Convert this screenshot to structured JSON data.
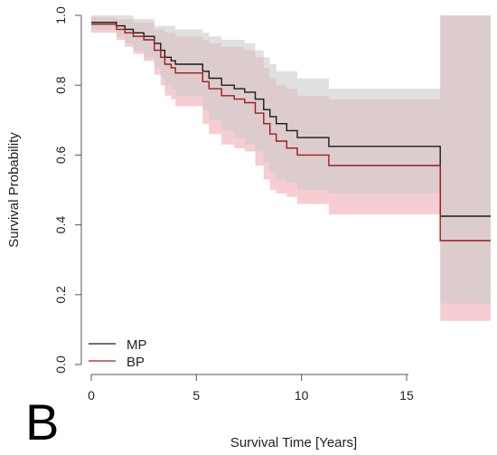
{
  "panel_label": "B",
  "chart_data": {
    "type": "line",
    "subtype": "kaplan-meier step with confidence bands",
    "xlabel": "Survival Time [Years]",
    "ylabel": "Survival Probability",
    "xlim": [
      0,
      19
    ],
    "ylim": [
      0,
      1
    ],
    "x_ticks": [
      0,
      5,
      10,
      15
    ],
    "y_ticks": [
      0.0,
      0.2,
      0.4,
      0.6,
      0.8,
      1.0
    ],
    "y_tick_labels": [
      "0.0",
      "0.2",
      "0.4",
      "0.6",
      "0.8",
      "1.0"
    ],
    "grid": false,
    "legend_position": "bottom-left",
    "colors": {
      "MP_line": "#1a1a1a",
      "BP_line": "#a31a1a",
      "MP_band": "#cccccc",
      "BP_band": "#f2b8bc"
    },
    "series": [
      {
        "name": "MP",
        "steps": [
          [
            0,
            0.98
          ],
          [
            1.2,
            0.97
          ],
          [
            1.6,
            0.96
          ],
          [
            2.0,
            0.95
          ],
          [
            2.5,
            0.94
          ],
          [
            3.0,
            0.92
          ],
          [
            3.3,
            0.9
          ],
          [
            3.5,
            0.88
          ],
          [
            3.8,
            0.87
          ],
          [
            4.0,
            0.86
          ],
          [
            5.3,
            0.84
          ],
          [
            5.6,
            0.82
          ],
          [
            6.2,
            0.8
          ],
          [
            6.8,
            0.79
          ],
          [
            7.3,
            0.78
          ],
          [
            7.8,
            0.76
          ],
          [
            8.2,
            0.73
          ],
          [
            8.5,
            0.71
          ],
          [
            8.8,
            0.69
          ],
          [
            9.3,
            0.67
          ],
          [
            9.8,
            0.65
          ],
          [
            11.3,
            0.625
          ],
          [
            16.6,
            0.425
          ]
        ],
        "lower": [
          [
            0,
            0.96
          ],
          [
            1.2,
            0.94
          ],
          [
            1.6,
            0.92
          ],
          [
            2.0,
            0.9
          ],
          [
            2.5,
            0.88
          ],
          [
            3.0,
            0.85
          ],
          [
            3.3,
            0.82
          ],
          [
            3.5,
            0.8
          ],
          [
            3.8,
            0.79
          ],
          [
            4.0,
            0.77
          ],
          [
            5.3,
            0.73
          ],
          [
            5.6,
            0.7
          ],
          [
            6.2,
            0.67
          ],
          [
            6.8,
            0.65
          ],
          [
            7.3,
            0.63
          ],
          [
            7.8,
            0.61
          ],
          [
            8.2,
            0.58
          ],
          [
            8.5,
            0.55
          ],
          [
            8.8,
            0.53
          ],
          [
            9.3,
            0.52
          ],
          [
            9.8,
            0.5
          ],
          [
            11.3,
            0.49
          ],
          [
            16.6,
            0.175
          ]
        ],
        "upper": [
          [
            0,
            1.0
          ],
          [
            2.0,
            0.99
          ],
          [
            3.0,
            0.97
          ],
          [
            4.0,
            0.96
          ],
          [
            5.3,
            0.95
          ],
          [
            5.6,
            0.94
          ],
          [
            6.2,
            0.93
          ],
          [
            7.3,
            0.92
          ],
          [
            7.8,
            0.9
          ],
          [
            8.2,
            0.88
          ],
          [
            8.5,
            0.86
          ],
          [
            8.8,
            0.84
          ],
          [
            9.8,
            0.82
          ],
          [
            11.3,
            0.79
          ],
          [
            16.6,
            1.0
          ]
        ]
      },
      {
        "name": "BP",
        "steps": [
          [
            0,
            0.975
          ],
          [
            1.2,
            0.96
          ],
          [
            1.6,
            0.95
          ],
          [
            2.0,
            0.94
          ],
          [
            2.5,
            0.93
          ],
          [
            3.0,
            0.9
          ],
          [
            3.3,
            0.88
          ],
          [
            3.5,
            0.86
          ],
          [
            3.8,
            0.85
          ],
          [
            4.0,
            0.835
          ],
          [
            5.3,
            0.81
          ],
          [
            5.6,
            0.79
          ],
          [
            6.2,
            0.77
          ],
          [
            6.8,
            0.76
          ],
          [
            7.3,
            0.75
          ],
          [
            7.8,
            0.72
          ],
          [
            8.2,
            0.69
          ],
          [
            8.5,
            0.66
          ],
          [
            8.8,
            0.64
          ],
          [
            9.3,
            0.62
          ],
          [
            9.8,
            0.6
          ],
          [
            11.3,
            0.57
          ],
          [
            16.6,
            0.355
          ]
        ],
        "lower": [
          [
            0,
            0.95
          ],
          [
            1.2,
            0.93
          ],
          [
            1.6,
            0.91
          ],
          [
            2.0,
            0.89
          ],
          [
            2.5,
            0.87
          ],
          [
            3.0,
            0.83
          ],
          [
            3.3,
            0.8
          ],
          [
            3.5,
            0.77
          ],
          [
            3.8,
            0.76
          ],
          [
            4.0,
            0.74
          ],
          [
            5.3,
            0.69
          ],
          [
            5.6,
            0.66
          ],
          [
            6.2,
            0.63
          ],
          [
            6.8,
            0.62
          ],
          [
            7.3,
            0.61
          ],
          [
            7.8,
            0.57
          ],
          [
            8.2,
            0.53
          ],
          [
            8.5,
            0.5
          ],
          [
            8.8,
            0.49
          ],
          [
            9.3,
            0.48
          ],
          [
            9.8,
            0.46
          ],
          [
            11.3,
            0.43
          ],
          [
            16.6,
            0.125
          ]
        ],
        "upper": [
          [
            0,
            0.995
          ],
          [
            1.2,
            0.99
          ],
          [
            2.0,
            0.98
          ],
          [
            3.0,
            0.96
          ],
          [
            3.5,
            0.95
          ],
          [
            4.0,
            0.94
          ],
          [
            5.3,
            0.93
          ],
          [
            5.6,
            0.92
          ],
          [
            6.2,
            0.91
          ],
          [
            7.3,
            0.9
          ],
          [
            7.8,
            0.88
          ],
          [
            8.2,
            0.85
          ],
          [
            8.5,
            0.82
          ],
          [
            8.8,
            0.8
          ],
          [
            9.3,
            0.79
          ],
          [
            9.8,
            0.77
          ],
          [
            11.3,
            0.76
          ],
          [
            16.6,
            1.0
          ]
        ]
      }
    ]
  }
}
